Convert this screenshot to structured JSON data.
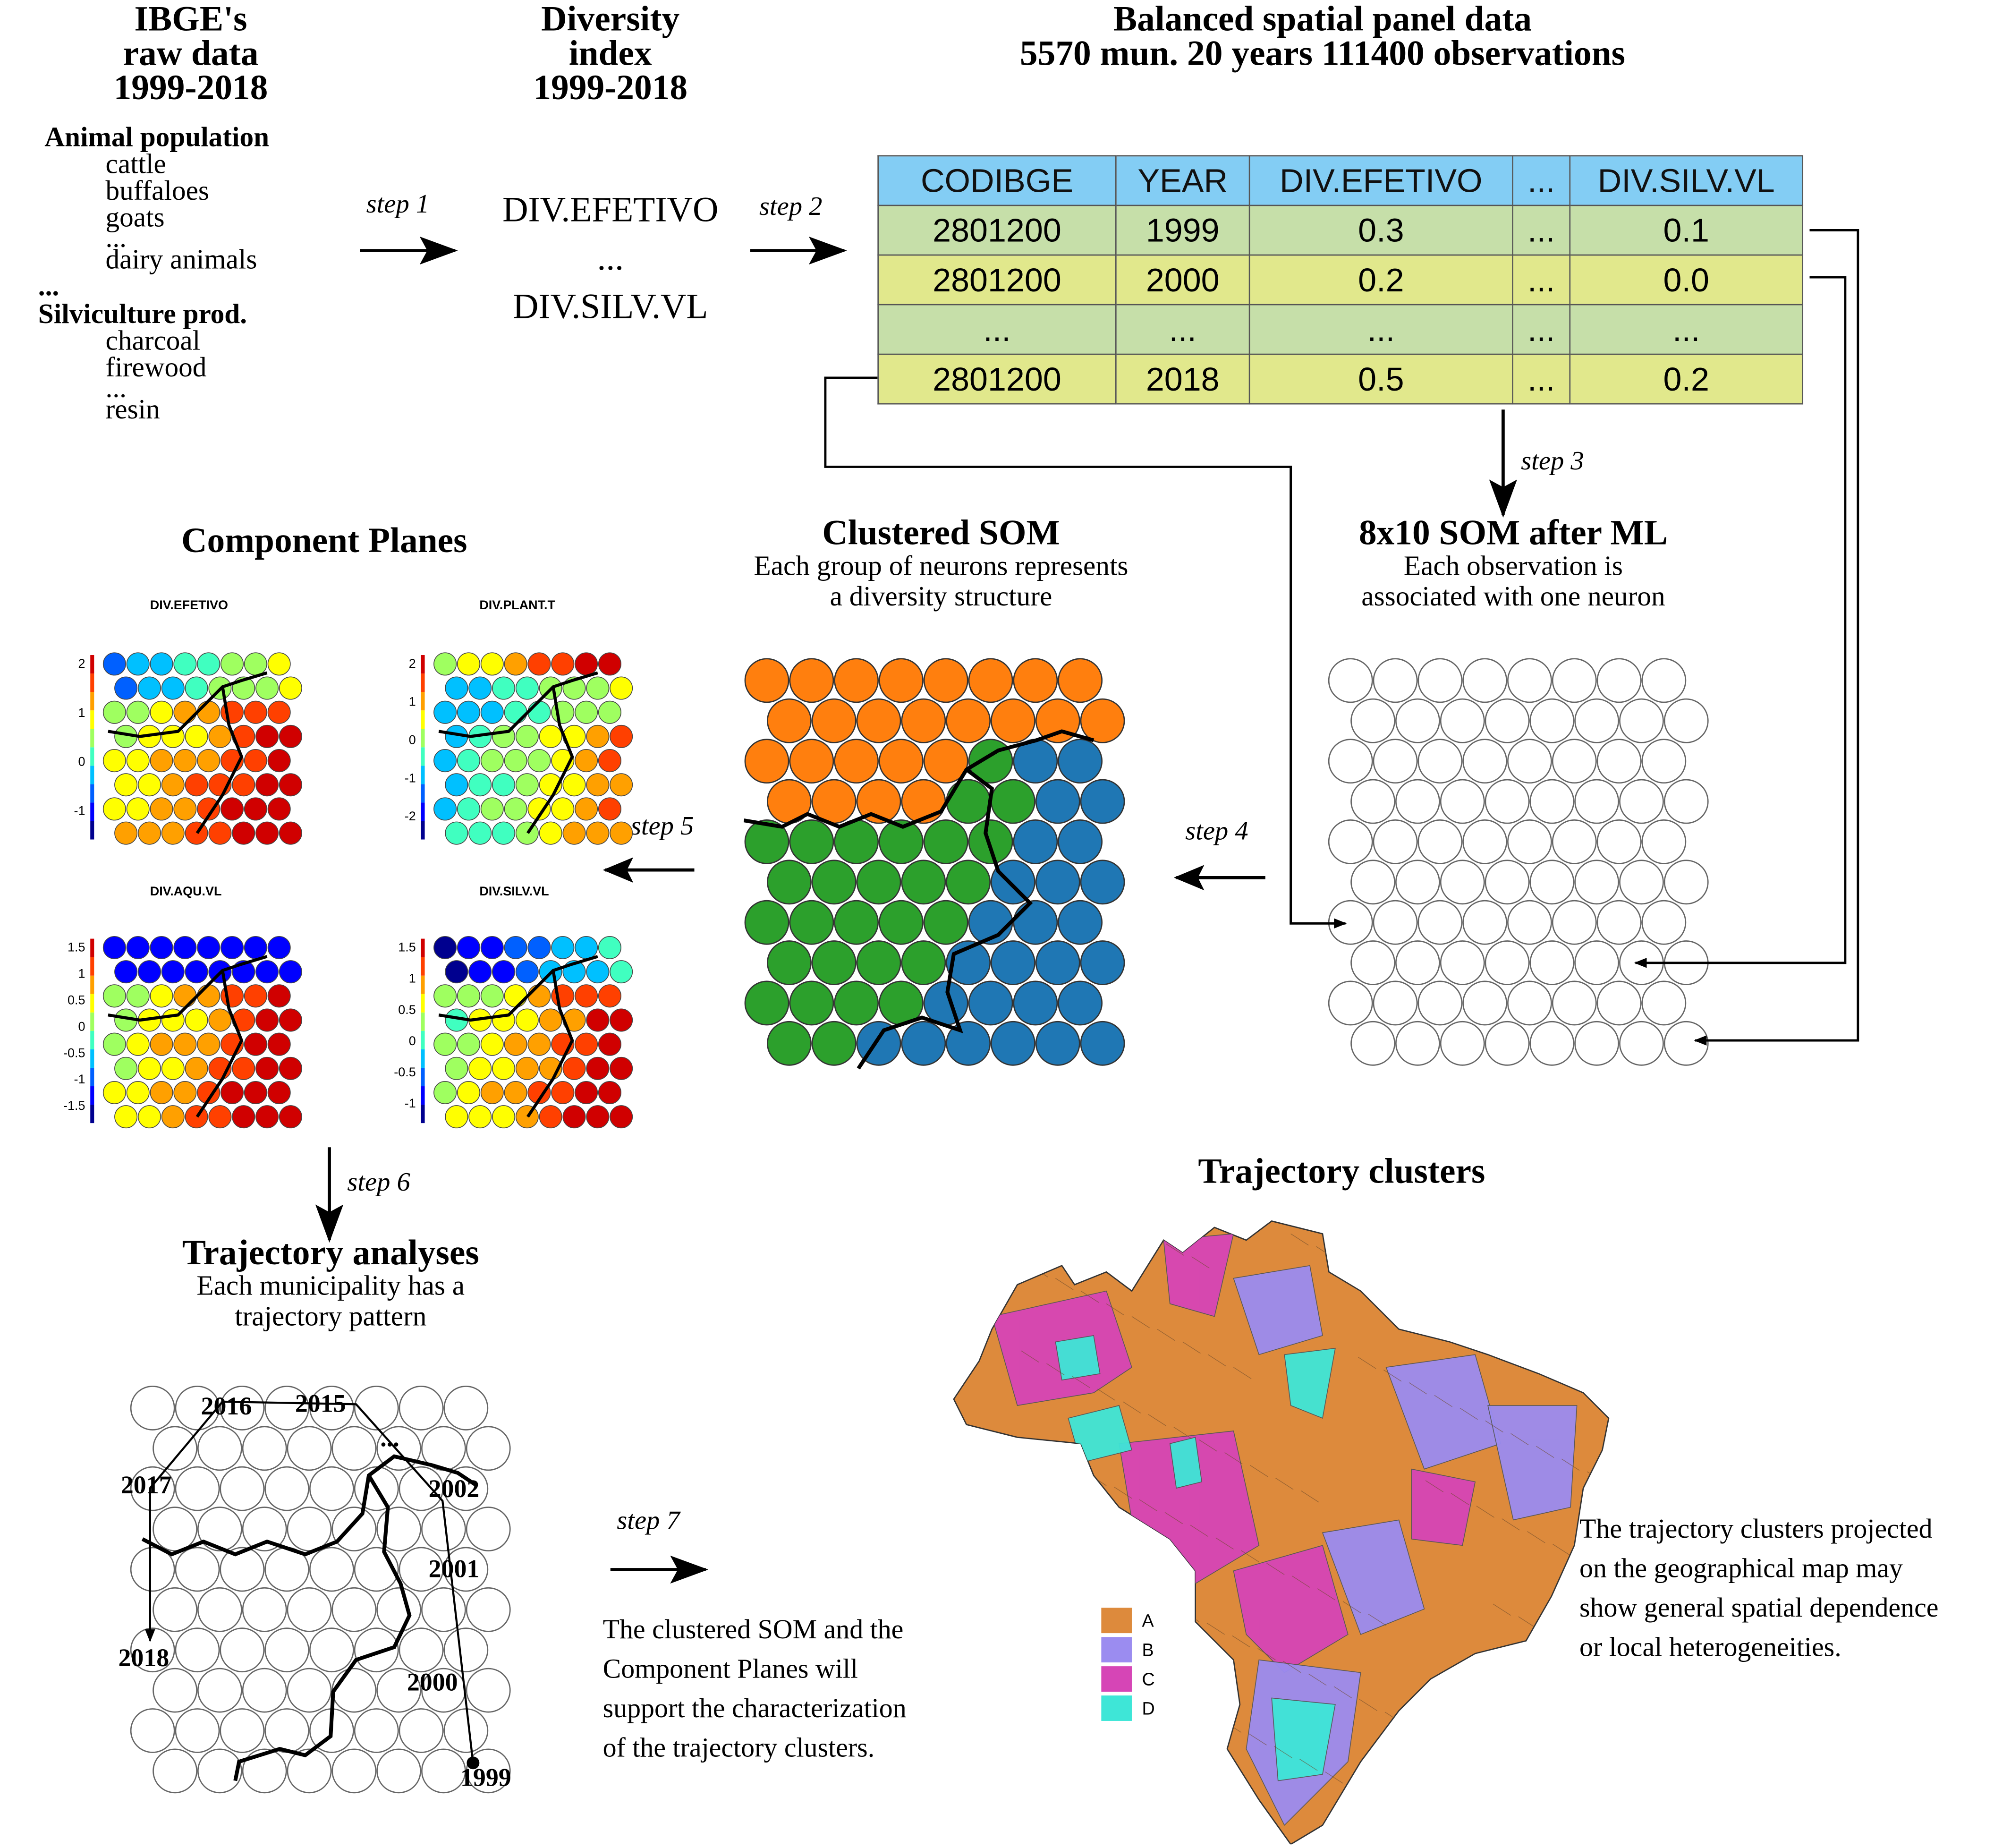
{
  "raw": {
    "title_lines": [
      "IBGE's",
      "raw data",
      "1999-2018"
    ],
    "animal_header": "Animal population",
    "animal_items": [
      "cattle",
      "buffaloes",
      "goats",
      "...",
      "dairy animals"
    ],
    "dots": "...",
    "silv_header": "Silviculture prod.",
    "silv_items": [
      "charcoal",
      "firewood",
      "...",
      "resin"
    ]
  },
  "diversity": {
    "title_lines": [
      "Diversity",
      "index",
      "1999-2018"
    ],
    "items": [
      "DIV.EFETIVO",
      "...",
      "DIV.SILV.VL"
    ]
  },
  "panel": {
    "title_lines": [
      "Balanced spatial panel data",
      "5570 mun. 20 years 111400 observations"
    ],
    "headers": [
      "CODIBGE",
      "YEAR",
      "DIV.EFETIVO",
      "...",
      "DIV.SILV.VL"
    ],
    "rows": [
      [
        "2801200",
        "1999",
        "0.3",
        "...",
        "0.1"
      ],
      [
        "2801200",
        "2000",
        "0.2",
        "...",
        "0.0"
      ],
      [
        "...",
        "...",
        "...",
        "...",
        "..."
      ],
      [
        "2801200",
        "2018",
        "0.5",
        "...",
        "0.2"
      ]
    ]
  },
  "steps": [
    "step 1",
    "step 2",
    "step 3",
    "step 4",
    "step 5",
    "step 6",
    "step 7"
  ],
  "som_ml": {
    "title": "8x10 SOM after ML",
    "subtitle_lines": [
      "Each observation is",
      "associated with one neuron"
    ]
  },
  "clustered_som": {
    "title": "Clustered SOM",
    "subtitle_lines": [
      "Each group of neurons represents",
      "a diversity structure"
    ],
    "colors": {
      "orange": "#ff7f0e",
      "green": "#2ca02c",
      "blue": "#1f77b4"
    }
  },
  "component_planes": {
    "title": "Component Planes",
    "planes": [
      {
        "name": "DIV.EFETIVO",
        "ticks": [
          "2",
          "1",
          "0",
          "-1"
        ]
      },
      {
        "name": "DIV.PLANT.T",
        "ticks": [
          "2",
          "1",
          "0",
          "-1",
          "-2"
        ]
      },
      {
        "name": "DIV.AQU.VL",
        "ticks": [
          "1.5",
          "1",
          "0.5",
          "0",
          "-0.5",
          "-1",
          "-1.5"
        ]
      },
      {
        "name": "DIV.SILV.VL",
        "ticks": [
          "1.5",
          "1",
          "0.5",
          "0",
          "-0.5",
          "-1"
        ]
      }
    ]
  },
  "trajectory": {
    "title": "Trajectory analyses",
    "subtitle_lines": [
      "Each municipality has a",
      "trajectory pattern"
    ],
    "years": [
      "2016",
      "2015",
      "...",
      "2017",
      "2002",
      "2001",
      "2018",
      "2000",
      "1999"
    ]
  },
  "step7_text_lines": [
    "The clustered SOM and the",
    "Component Planes will",
    "support the characterization",
    "of the trajectory clusters."
  ],
  "map": {
    "title": "Trajectory clusters",
    "legend": [
      {
        "label": "A",
        "color": "#dd8a3c"
      },
      {
        "label": "B",
        "color": "#9b8cf0"
      },
      {
        "label": "C",
        "color": "#d645b6"
      },
      {
        "label": "D",
        "color": "#3ee6d7"
      }
    ]
  },
  "map_text_lines": [
    "The trajectory clusters projected",
    "on the geographical map may",
    "show general spatial dependence",
    "or local heterogeneities."
  ]
}
